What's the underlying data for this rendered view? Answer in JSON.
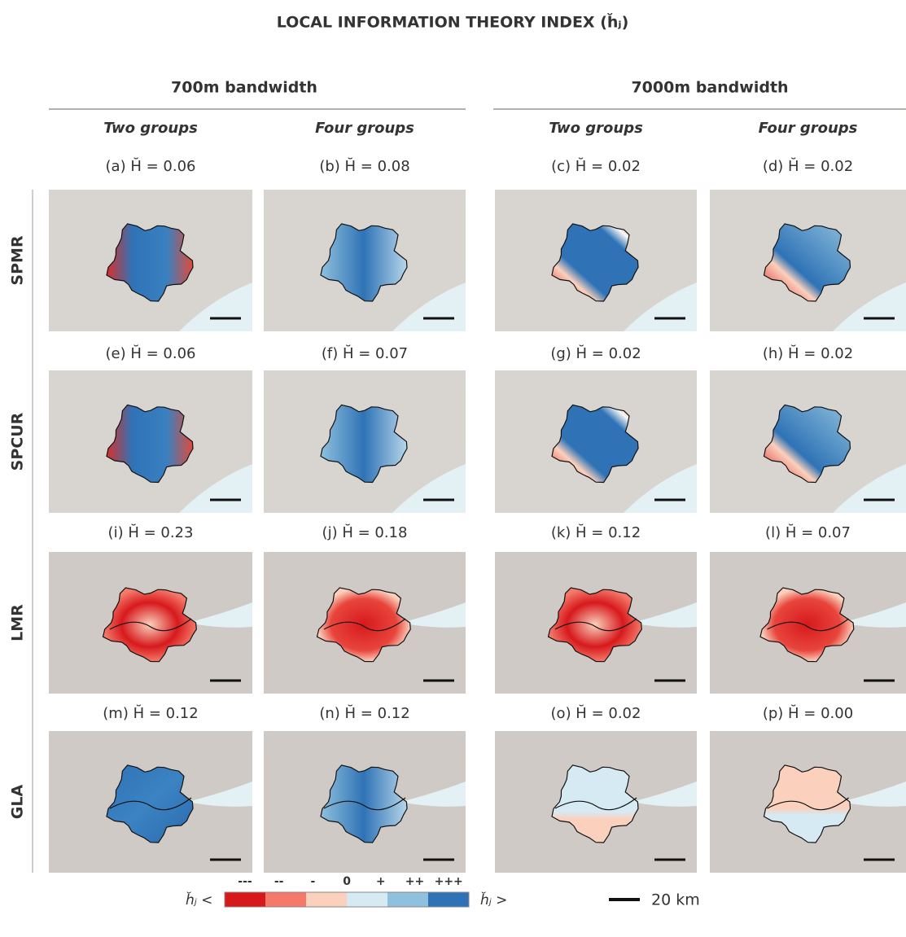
{
  "title": "LOCAL INFORMATION THEORY INDEX (h̆ⱼ)",
  "bandwidths": [
    "700m bandwidth",
    "7000m bandwidth"
  ],
  "groups": [
    "Two groups",
    "Four groups",
    "Two groups",
    "Four groups"
  ],
  "rows": [
    {
      "label": "SPMR",
      "panels": [
        "(a) H̆ = 0.06",
        "(b) H̆ = 0.08",
        "(c) H̆ = 0.02",
        "(d) H̆ = 0.02"
      ]
    },
    {
      "label": "SPCUR",
      "panels": [
        "(e) H̆ = 0.06",
        "(f) H̆ = 0.07",
        "(g) H̆ = 0.02",
        "(h) H̆ = 0.02"
      ]
    },
    {
      "label": "LMR",
      "panels": [
        "(i) H̆ = 0.23",
        "(j) H̆ = 0.18",
        "(k) H̆ = 0.12",
        "(l) H̆ = 0.07"
      ]
    },
    {
      "label": "GLA",
      "panels": [
        "(m) H̆ = 0.12",
        "(n) H̆ = 0.12",
        "(o) H̆ = 0.02",
        "(p) H̆ = 0.00"
      ]
    }
  ],
  "legend": {
    "left": "h̆ⱼ <",
    "right": "h̆ⱼ >",
    "symbols": [
      "---",
      "--",
      "-",
      "0",
      "+",
      "++",
      "+++"
    ],
    "scale": "20 km"
  }
}
